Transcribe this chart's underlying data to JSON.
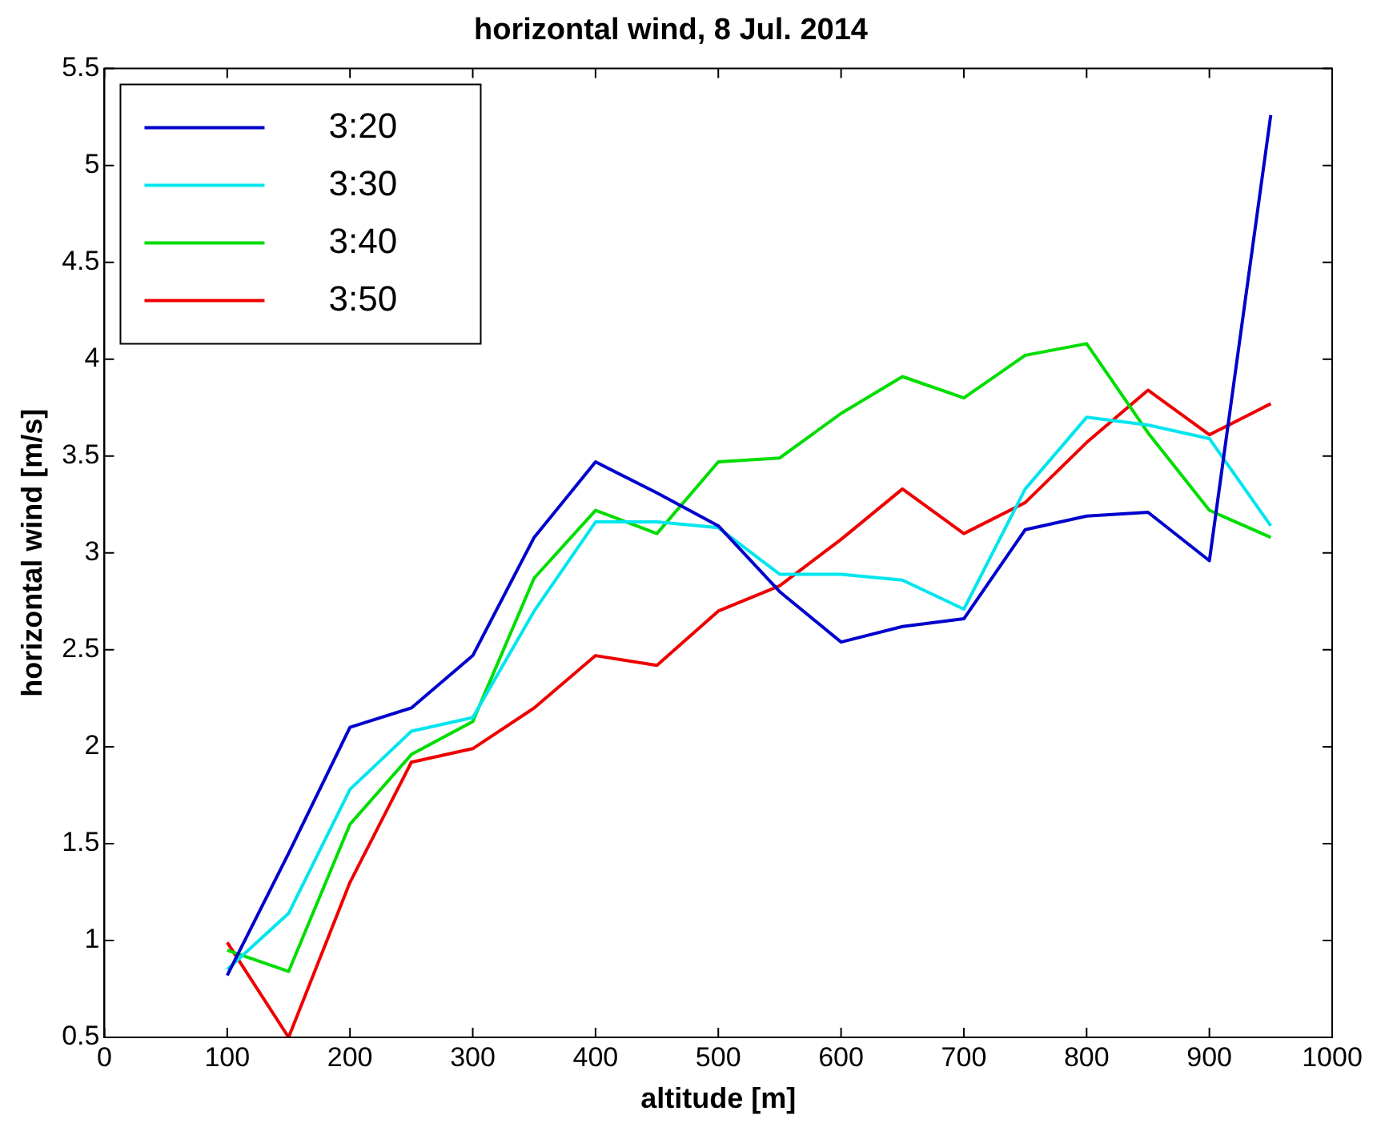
{
  "chart_data": {
    "type": "line",
    "title": "horizontal wind, 8 Jul. 2014",
    "xlabel": "altitude [m]",
    "ylabel": "horizontal wind [m/s]",
    "x": [
      100,
      150,
      200,
      250,
      300,
      350,
      400,
      450,
      500,
      550,
      600,
      650,
      700,
      750,
      800,
      850,
      900,
      950
    ],
    "series": [
      {
        "name": "3:20",
        "color": "#0000cc",
        "values": [
          0.82,
          1.45,
          2.1,
          2.2,
          2.47,
          3.08,
          3.47,
          3.31,
          3.14,
          2.8,
          2.54,
          2.62,
          2.66,
          3.12,
          3.19,
          3.21,
          2.96,
          5.26
        ]
      },
      {
        "name": "3:30",
        "color": "#00e5ee",
        "values": [
          0.85,
          1.14,
          1.78,
          2.08,
          2.15,
          2.7,
          3.16,
          3.16,
          3.13,
          2.89,
          2.89,
          2.86,
          2.71,
          3.33,
          3.7,
          3.66,
          3.59,
          3.14
        ]
      },
      {
        "name": "3:40",
        "color": "#00dd00",
        "values": [
          0.95,
          0.84,
          1.6,
          1.96,
          2.13,
          2.87,
          3.22,
          3.1,
          3.47,
          3.49,
          3.72,
          3.91,
          3.8,
          4.02,
          4.08,
          3.62,
          3.22,
          3.08
        ]
      },
      {
        "name": "3:50",
        "color": "#ee0000",
        "values": [
          0.99,
          0.5,
          1.3,
          1.92,
          1.99,
          2.2,
          2.47,
          2.42,
          2.7,
          2.83,
          3.07,
          3.33,
          3.1,
          3.26,
          3.57,
          3.84,
          3.61,
          3.77
        ]
      }
    ],
    "xlim": [
      0,
      1000
    ],
    "xticks": [
      0,
      100,
      200,
      300,
      400,
      500,
      600,
      700,
      800,
      900,
      1000
    ],
    "ylim": [
      0.5,
      5.5
    ],
    "yticks": [
      0.5,
      1,
      1.5,
      2,
      2.5,
      3,
      3.5,
      4,
      4.5,
      5,
      5.5
    ],
    "grid": false,
    "legend": "top left",
    "marker": "none",
    "line_style": "solid"
  }
}
